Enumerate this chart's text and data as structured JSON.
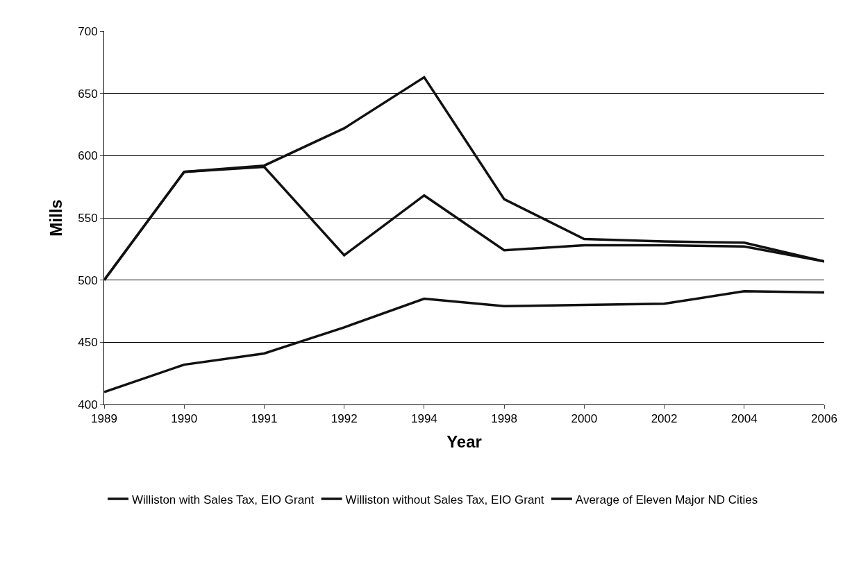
{
  "chart_data": {
    "type": "line",
    "xlabel": "Year",
    "ylabel": "Mills",
    "categories": [
      "1989",
      "1990",
      "1991",
      "1992",
      "1994",
      "1998",
      "2000",
      "2002",
      "2004",
      "2006"
    ],
    "series": [
      {
        "name": "Williston with Sales Tax, EIO Grant",
        "color": "#111111",
        "values": [
          500,
          587,
          591,
          520,
          568,
          524,
          528,
          528,
          527,
          515
        ]
      },
      {
        "name": "Williston without Sales Tax, EIO Grant",
        "color": "#111111",
        "values": [
          500,
          587,
          592,
          622,
          663,
          565,
          533,
          531,
          530,
          515
        ]
      },
      {
        "name": "Average of Eleven Major ND Cities",
        "color": "#111111",
        "values": [
          410,
          432,
          441,
          462,
          485,
          479,
          480,
          481,
          491,
          490
        ]
      }
    ],
    "ylim": [
      400,
      700
    ],
    "yticks": [
      400,
      450,
      500,
      550,
      600,
      650,
      700
    ],
    "grid": "y",
    "legend": "bottom",
    "marker": "none",
    "line_style": "solid"
  }
}
